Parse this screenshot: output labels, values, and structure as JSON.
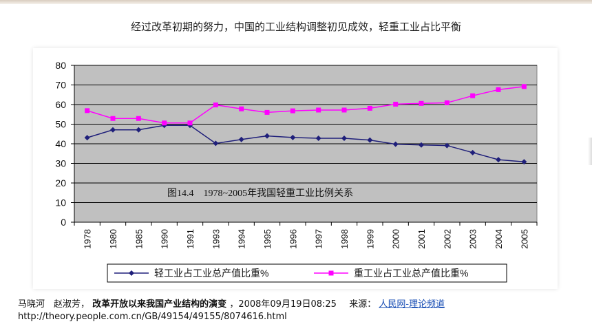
{
  "headline": "经过改革初期的努力，中国的工业结构调整初见成效，轻重工业占比平衡",
  "chart_data": {
    "type": "line",
    "title": "",
    "caption": "图14.4　1978~2005年我国轻重工业比例关系",
    "xlabel": "",
    "ylabel": "",
    "categories": [
      "1978",
      "1980",
      "1985",
      "1990",
      "1991",
      "1993",
      "1994",
      "1995",
      "1996",
      "1997",
      "1998",
      "1999",
      "2000",
      "2001",
      "2002",
      "2003",
      "2004",
      "2005"
    ],
    "ylim": [
      0,
      80
    ],
    "yticks": [
      0,
      10,
      20,
      30,
      40,
      50,
      60,
      70,
      80
    ],
    "grid": true,
    "plot_background": "#c0c0c0",
    "legend_position": "bottom",
    "series": [
      {
        "name": "轻工业占工业总产值比重%",
        "color": "#1f1f7a",
        "marker": "diamond",
        "values": [
          43.1,
          47.1,
          47.1,
          49.4,
          49.4,
          40.2,
          42.2,
          44.0,
          43.2,
          42.8,
          42.8,
          41.9,
          39.8,
          39.4,
          39.1,
          35.5,
          31.9,
          30.8
        ]
      },
      {
        "name": "重工业占工业总产值比重%",
        "color": "#ff00ff",
        "marker": "square",
        "values": [
          56.9,
          52.9,
          52.9,
          50.6,
          50.6,
          59.8,
          57.8,
          56.0,
          56.8,
          57.2,
          57.2,
          58.1,
          60.2,
          60.6,
          60.9,
          64.5,
          67.6,
          69.2
        ]
      }
    ]
  },
  "source": {
    "authors": "马晓河　赵淑芳，",
    "article": "改革开放以来我国产业结构的演变",
    "date": "，2008年09月19日08:25",
    "source_label": "来源：",
    "source_link": "人民网-理论频道",
    "url": "http://theory.people.com.cn/GB/49154/49155/8074616.html"
  }
}
